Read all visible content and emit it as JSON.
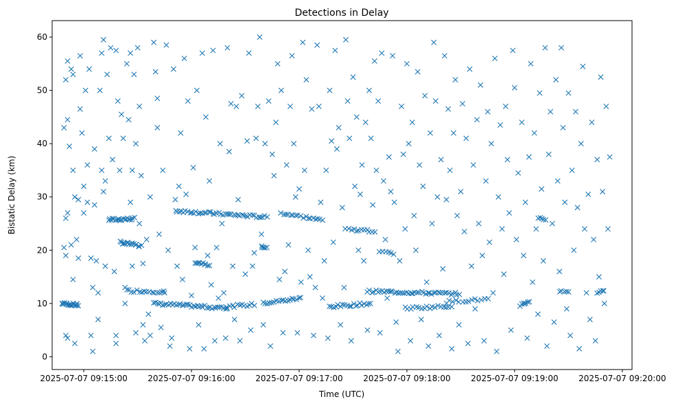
{
  "chart_data": {
    "type": "scatter",
    "title": "Detections in Delay",
    "xlabel": "Time (UTC)",
    "ylabel": "Bistatic Delay (km)",
    "marker": "x",
    "color": "#1f77b4",
    "x_unit": "seconds after 2025-07-07 09:15:00",
    "xlim": [
      -17.6,
      305.4
    ],
    "ylim": [
      -2.4,
      63.1
    ],
    "x_ticks": [
      {
        "value": 0,
        "label": "2025-07-07 09:15:00"
      },
      {
        "value": 60,
        "label": "2025-07-07 09:16:00"
      },
      {
        "value": 120,
        "label": "2025-07-07 09:17:00"
      },
      {
        "value": 180,
        "label": "2025-07-07 09:18:00"
      },
      {
        "value": 240,
        "label": "2025-07-07 09:19:00"
      },
      {
        "value": 300,
        "label": "2025-07-07 09:20:00"
      }
    ],
    "y_ticks": [
      {
        "value": 0,
        "label": "0"
      },
      {
        "value": 10,
        "label": "10"
      },
      {
        "value": 20,
        "label": "20"
      },
      {
        "value": 30,
        "label": "30"
      },
      {
        "value": 40,
        "label": "40"
      },
      {
        "value": 50,
        "label": "50"
      },
      {
        "value": 60,
        "label": "60"
      }
    ],
    "grid": false,
    "dense_tracks": [
      {
        "x": [
          -12,
          -3
        ],
        "y": [
          10,
          9.7
        ],
        "count": 18
      },
      {
        "x": [
          14,
          28
        ],
        "y": [
          25.7,
          25.9
        ],
        "count": 20
      },
      {
        "x": [
          20,
          32
        ],
        "y": [
          21.5,
          20.8
        ],
        "count": 16
      },
      {
        "x": [
          24,
          45
        ],
        "y": [
          12.4,
          12.2
        ],
        "count": 16
      },
      {
        "x": [
          39,
          80
        ],
        "y": [
          10,
          9.1
        ],
        "count": 40
      },
      {
        "x": [
          51,
          102
        ],
        "y": [
          27.4,
          26.2
        ],
        "count": 45
      },
      {
        "x": [
          62,
          70
        ],
        "y": [
          17.8,
          17.3
        ],
        "count": 10
      },
      {
        "x": [
          80,
          95
        ],
        "y": [
          9.4,
          9.8
        ],
        "count": 12
      },
      {
        "x": [
          99,
          102
        ],
        "y": [
          20.7,
          20.5
        ],
        "count": 5
      },
      {
        "x": [
          100,
          121
        ],
        "y": [
          10,
          11
        ],
        "count": 18
      },
      {
        "x": [
          110,
          133
        ],
        "y": [
          27,
          25.6
        ],
        "count": 18
      },
      {
        "x": [
          137,
          160
        ],
        "y": [
          9.4,
          10
        ],
        "count": 20
      },
      {
        "x": [
          146,
          162
        ],
        "y": [
          24,
          23.5
        ],
        "count": 12
      },
      {
        "x": [
          158,
          209
        ],
        "y": [
          12.3,
          11.8
        ],
        "count": 45
      },
      {
        "x": [
          179,
          205
        ],
        "y": [
          9.1,
          9.5
        ],
        "count": 18
      },
      {
        "x": [
          202,
          225
        ],
        "y": [
          10.3,
          10.8
        ],
        "count": 14
      },
      {
        "x": [
          165,
          173
        ],
        "y": [
          19.6,
          19.3
        ],
        "count": 6
      },
      {
        "x": [
          244,
          248
        ],
        "y": [
          10,
          10.2
        ],
        "count": 6
      },
      {
        "x": [
          253,
          257
        ],
        "y": [
          26.2,
          25.8
        ],
        "count": 5
      },
      {
        "x": [
          265,
          270
        ],
        "y": [
          12.2,
          12.3
        ],
        "count": 5
      },
      {
        "x": [
          286,
          290
        ],
        "y": [
          12.1,
          12.2
        ],
        "count": 5
      }
    ],
    "points": [
      [
        -11,
        43
      ],
      [
        -10,
        52
      ],
      [
        -9,
        55.5
      ],
      [
        -9,
        44.5
      ],
      [
        -8,
        39.5
      ],
      [
        -7,
        54
      ],
      [
        -6,
        53
      ],
      [
        -6,
        35
      ],
      [
        -5,
        30
      ],
      [
        -4,
        22
      ],
      [
        -3,
        18.5
      ],
      [
        -10,
        19
      ],
      [
        -10,
        4
      ],
      [
        -9,
        3.5
      ],
      [
        -6,
        14.5
      ],
      [
        -5,
        2.5
      ],
      [
        -11,
        20.5
      ],
      [
        -9,
        27
      ],
      [
        -10,
        26
      ],
      [
        -7,
        21
      ],
      [
        -3,
        29.5
      ],
      [
        -2,
        46.5
      ],
      [
        -2,
        56.5
      ],
      [
        -1,
        42
      ],
      [
        0,
        32
      ],
      [
        0,
        27
      ],
      [
        1,
        50
      ],
      [
        2,
        36
      ],
      [
        2,
        29
      ],
      [
        3,
        54
      ],
      [
        4,
        18.5
      ],
      [
        4,
        4
      ],
      [
        5,
        13
      ],
      [
        5,
        1
      ],
      [
        6,
        28.5
      ],
      [
        6,
        39
      ],
      [
        7,
        18
      ],
      [
        8,
        7
      ],
      [
        8,
        12
      ],
      [
        9,
        50
      ],
      [
        10,
        57
      ],
      [
        10,
        35
      ],
      [
        11,
        31
      ],
      [
        11,
        59.5
      ],
      [
        12,
        33
      ],
      [
        12,
        17
      ],
      [
        13,
        53
      ],
      [
        14,
        41
      ],
      [
        15,
        58
      ],
      [
        16,
        37
      ],
      [
        17,
        16
      ],
      [
        18,
        57.5
      ],
      [
        18,
        4
      ],
      [
        18,
        2.5
      ],
      [
        19,
        48
      ],
      [
        20,
        35
      ],
      [
        21,
        45.5
      ],
      [
        22,
        41
      ],
      [
        23,
        13
      ],
      [
        23,
        10
      ],
      [
        24,
        55
      ],
      [
        25,
        44.5
      ],
      [
        26,
        57
      ],
      [
        26,
        29
      ],
      [
        27,
        35
      ],
      [
        27,
        17
      ],
      [
        28,
        53
      ],
      [
        29,
        40
      ],
      [
        29,
        4.5
      ],
      [
        30,
        58
      ],
      [
        31,
        47
      ],
      [
        31,
        25
      ],
      [
        32,
        34
      ],
      [
        33,
        6
      ],
      [
        33,
        17.5
      ],
      [
        34,
        3
      ],
      [
        35,
        22
      ],
      [
        36,
        8
      ],
      [
        37,
        4
      ],
      [
        37,
        30
      ],
      [
        39,
        59
      ],
      [
        40,
        53.5
      ],
      [
        41,
        48.5
      ],
      [
        41,
        43
      ],
      [
        42,
        23
      ],
      [
        43,
        5.5
      ],
      [
        44,
        35
      ],
      [
        45,
        12
      ],
      [
        46,
        58.5
      ],
      [
        47,
        20
      ],
      [
        48,
        2
      ],
      [
        49,
        3.5
      ],
      [
        50,
        54
      ],
      [
        51,
        29.5
      ],
      [
        52,
        17
      ],
      [
        53,
        32
      ],
      [
        54,
        42
      ],
      [
        55,
        14.5
      ],
      [
        56,
        56
      ],
      [
        57,
        30.5
      ],
      [
        58,
        48
      ],
      [
        59,
        1.5
      ],
      [
        60,
        11.5
      ],
      [
        61,
        35.5
      ],
      [
        62,
        20.5
      ],
      [
        63,
        50
      ],
      [
        64,
        6
      ],
      [
        66,
        57
      ],
      [
        67,
        1.5
      ],
      [
        68,
        45
      ],
      [
        69,
        19
      ],
      [
        70,
        33
      ],
      [
        71,
        13.5
      ],
      [
        72,
        57.5
      ],
      [
        73,
        3
      ],
      [
        74,
        20.5
      ],
      [
        75,
        11
      ],
      [
        76,
        40
      ],
      [
        77,
        25
      ],
      [
        78,
        12
      ],
      [
        79,
        3.5
      ],
      [
        80,
        58
      ],
      [
        81,
        38.5
      ],
      [
        82,
        47.5
      ],
      [
        83,
        17
      ],
      [
        84,
        7
      ],
      [
        85,
        47
      ],
      [
        86,
        29.5
      ],
      [
        87,
        3
      ],
      [
        88,
        49
      ],
      [
        90,
        15.5
      ],
      [
        91,
        40.5
      ],
      [
        92,
        57
      ],
      [
        93,
        5
      ],
      [
        94,
        17
      ],
      [
        95,
        19.5
      ],
      [
        96,
        41
      ],
      [
        97,
        47
      ],
      [
        98,
        60
      ],
      [
        99,
        23
      ],
      [
        100,
        6
      ],
      [
        101,
        40
      ],
      [
        103,
        48
      ],
      [
        104,
        2
      ],
      [
        105,
        38
      ],
      [
        106,
        34
      ],
      [
        107,
        44
      ],
      [
        108,
        55
      ],
      [
        109,
        14.5
      ],
      [
        110,
        50
      ],
      [
        111,
        4.5
      ],
      [
        112,
        16
      ],
      [
        113,
        36
      ],
      [
        114,
        21
      ],
      [
        115,
        47
      ],
      [
        116,
        56.5
      ],
      [
        117,
        40
      ],
      [
        118,
        30
      ],
      [
        119,
        4.5
      ],
      [
        120,
        31.5
      ],
      [
        121,
        14
      ],
      [
        122,
        59
      ],
      [
        123,
        35
      ],
      [
        124,
        52
      ],
      [
        125,
        20
      ],
      [
        126,
        15
      ],
      [
        127,
        46.5
      ],
      [
        128,
        4
      ],
      [
        129,
        13
      ],
      [
        130,
        58.5
      ],
      [
        131,
        47
      ],
      [
        132,
        29
      ],
      [
        133,
        11
      ],
      [
        134,
        18
      ],
      [
        135,
        35
      ],
      [
        136,
        3.5
      ],
      [
        137,
        50
      ],
      [
        138,
        40.5
      ],
      [
        139,
        21.5
      ],
      [
        140,
        57.5
      ],
      [
        141,
        39
      ],
      [
        142,
        43
      ],
      [
        143,
        6
      ],
      [
        144,
        28
      ],
      [
        145,
        13
      ],
      [
        146,
        59.5
      ],
      [
        147,
        48
      ],
      [
        148,
        41
      ],
      [
        149,
        3
      ],
      [
        150,
        52.5
      ],
      [
        151,
        32
      ],
      [
        152,
        45
      ],
      [
        153,
        20
      ],
      [
        154,
        30.5
      ],
      [
        155,
        36
      ],
      [
        156,
        18
      ],
      [
        157,
        44
      ],
      [
        158,
        5
      ],
      [
        159,
        50
      ],
      [
        160,
        41
      ],
      [
        161,
        28.5
      ],
      [
        162,
        55.5
      ],
      [
        163,
        35
      ],
      [
        164,
        48
      ],
      [
        165,
        4.5
      ],
      [
        166,
        57
      ],
      [
        167,
        33
      ],
      [
        168,
        22
      ],
      [
        169,
        11
      ],
      [
        170,
        37.5
      ],
      [
        171,
        31
      ],
      [
        172,
        56.5
      ],
      [
        173,
        29
      ],
      [
        174,
        6.5
      ],
      [
        175,
        1
      ],
      [
        176,
        18
      ],
      [
        177,
        47
      ],
      [
        178,
        38
      ],
      [
        179,
        24
      ],
      [
        180,
        55
      ],
      [
        181,
        40
      ],
      [
        182,
        3
      ],
      [
        183,
        44
      ],
      [
        184,
        26.5
      ],
      [
        185,
        20
      ],
      [
        186,
        53.5
      ],
      [
        187,
        36
      ],
      [
        188,
        7
      ],
      [
        189,
        32
      ],
      [
        190,
        49
      ],
      [
        191,
        14
      ],
      [
        192,
        2
      ],
      [
        193,
        42
      ],
      [
        194,
        25
      ],
      [
        195,
        59
      ],
      [
        196,
        48
      ],
      [
        197,
        30
      ],
      [
        198,
        4
      ],
      [
        199,
        37
      ],
      [
        200,
        16.5
      ],
      [
        201,
        56.5
      ],
      [
        202,
        29.5
      ],
      [
        203,
        46.5
      ],
      [
        204,
        35
      ],
      [
        205,
        1.5
      ],
      [
        206,
        42
      ],
      [
        207,
        52
      ],
      [
        208,
        26.5
      ],
      [
        209,
        6
      ],
      [
        210,
        31
      ],
      [
        211,
        47.5
      ],
      [
        212,
        23.5
      ],
      [
        213,
        41
      ],
      [
        214,
        2.5
      ],
      [
        215,
        54
      ],
      [
        216,
        17
      ],
      [
        217,
        36
      ],
      [
        218,
        9
      ],
      [
        219,
        44.5
      ],
      [
        220,
        25
      ],
      [
        221,
        51
      ],
      [
        222,
        19
      ],
      [
        223,
        3
      ],
      [
        224,
        33
      ],
      [
        225,
        46
      ],
      [
        226,
        21.5
      ],
      [
        227,
        40
      ],
      [
        228,
        12
      ],
      [
        229,
        56
      ],
      [
        230,
        1
      ],
      [
        231,
        30
      ],
      [
        232,
        43.5
      ],
      [
        233,
        24
      ],
      [
        234,
        15.5
      ],
      [
        235,
        47
      ],
      [
        236,
        37
      ],
      [
        237,
        27
      ],
      [
        238,
        5
      ],
      [
        239,
        57.5
      ],
      [
        240,
        50.5
      ],
      [
        241,
        22
      ],
      [
        242,
        34.5
      ],
      [
        243,
        9.5
      ],
      [
        244,
        44
      ],
      [
        245,
        19
      ],
      [
        246,
        29
      ],
      [
        247,
        3.5
      ],
      [
        248,
        37.5
      ],
      [
        249,
        55
      ],
      [
        250,
        14
      ],
      [
        251,
        42
      ],
      [
        252,
        24
      ],
      [
        253,
        8
      ],
      [
        254,
        49.5
      ],
      [
        255,
        31.5
      ],
      [
        256,
        18
      ],
      [
        257,
        58
      ],
      [
        258,
        2
      ],
      [
        259,
        38
      ],
      [
        260,
        46
      ],
      [
        261,
        25
      ],
      [
        262,
        6.5
      ],
      [
        263,
        52
      ],
      [
        264,
        33
      ],
      [
        265,
        16
      ],
      [
        266,
        58
      ],
      [
        267,
        43
      ],
      [
        268,
        29
      ],
      [
        269,
        9
      ],
      [
        270,
        49.5
      ],
      [
        271,
        4
      ],
      [
        272,
        35
      ],
      [
        273,
        20
      ],
      [
        274,
        46
      ],
      [
        275,
        28
      ],
      [
        276,
        1.5
      ],
      [
        277,
        40
      ],
      [
        278,
        54.5
      ],
      [
        279,
        24
      ],
      [
        280,
        12
      ],
      [
        281,
        30.5
      ],
      [
        282,
        7
      ],
      [
        283,
        44
      ],
      [
        284,
        22
      ],
      [
        285,
        3
      ],
      [
        286,
        37
      ],
      [
        287,
        15
      ],
      [
        288,
        52.5
      ],
      [
        289,
        31
      ],
      [
        290,
        10
      ],
      [
        291,
        47
      ],
      [
        292,
        24
      ],
      [
        293,
        37.5
      ]
    ]
  }
}
